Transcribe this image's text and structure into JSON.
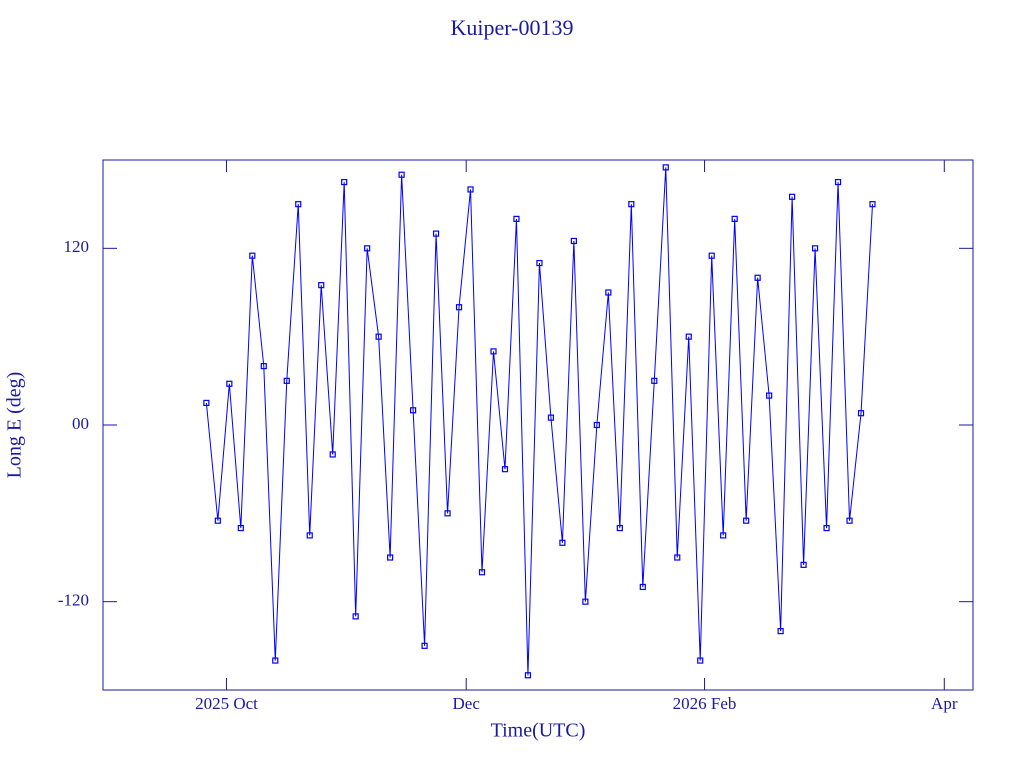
{
  "chart_data": {
    "type": "line",
    "title": "Kuiper-00139",
    "x_label": "Time(UTC)",
    "y_label": "Long E (deg)",
    "x": [
      2025.736,
      2025.744,
      2025.752,
      2025.76,
      2025.768,
      2025.776,
      2025.784,
      2025.792,
      2025.8,
      2025.808,
      2025.816,
      2025.824,
      2025.832,
      2025.84,
      2025.848,
      2025.856,
      2025.864,
      2025.872,
      2025.88,
      2025.888,
      2025.896,
      2025.904,
      2025.912,
      2025.92,
      2025.928,
      2025.936,
      2025.944,
      2025.952,
      2025.96,
      2025.968,
      2025.976,
      2025.984,
      2025.992,
      2026.0,
      2026.008,
      2026.016,
      2026.024,
      2026.032,
      2026.04,
      2026.048,
      2026.056,
      2026.064,
      2026.072,
      2026.08,
      2026.088,
      2026.096,
      2026.104,
      2026.112,
      2026.12,
      2026.128,
      2026.136,
      2026.144,
      2026.152,
      2026.16,
      2026.168,
      2026.176,
      2026.184,
      2026.192,
      2026.2
    ],
    "series": [
      {
        "color": "#0000ff",
        "values": [
          15,
          -65,
          28,
          -70,
          115,
          40,
          -160,
          30,
          150,
          -75,
          95,
          -20,
          165,
          -130,
          120,
          60,
          -90,
          170,
          10,
          -150,
          130,
          -60,
          80,
          160,
          -100,
          50,
          -30,
          140,
          -170,
          110,
          5,
          -80,
          125,
          -120,
          0,
          90,
          -70,
          150,
          -110,
          30,
          175,
          -90,
          60,
          -160,
          115,
          -75,
          140,
          -65,
          100,
          20,
          -140,
          155,
          -95,
          120,
          -70,
          165,
          -65,
          8,
          150
        ]
      }
    ],
    "xlim": [
      2025.664,
      2026.27
    ],
    "xticks": [
      {
        "value": 2025.75,
        "label": "2025 Oct"
      },
      {
        "value": 2025.917,
        "label": "Dec"
      },
      {
        "value": 2026.083,
        "label": "2026 Feb"
      },
      {
        "value": 2026.25,
        "label": "Apr"
      }
    ],
    "ylim": [
      -180,
      180
    ],
    "yticks": [
      -120,
      {
        "value": 0,
        "label": "00"
      },
      120
    ]
  }
}
